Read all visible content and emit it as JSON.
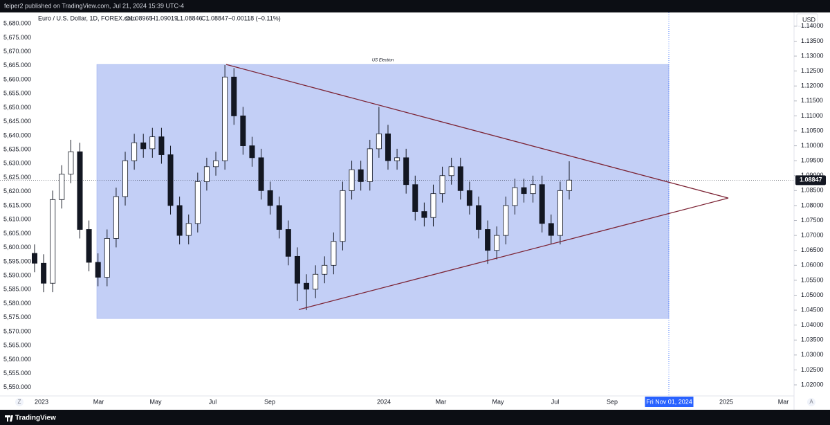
{
  "header": {
    "publisher": "feiper2 published on TradingView.com, Jul 21, 2024 15:39 UTC-4"
  },
  "footer": {
    "brand": "TradingView"
  },
  "chart_data": {
    "type": "candlestick",
    "legend": {
      "symbol": "Euro / U.S. Dollar, 1D, FOREX.com",
      "open": "O1.08965",
      "high": "H1.09019",
      "low": "L1.08846",
      "close": "C1.08847",
      "change": "−0.00118 (−0.11%)"
    },
    "currency": "USD",
    "up_color": "#ffffff",
    "down_color": "#131722",
    "wick_color": "#131722",
    "open": [
      1.064,
      1.0607,
      1.054,
      1.082,
      1.0905,
      1.098,
      1.072,
      1.061,
      1.056,
      1.069,
      1.083,
      1.095,
      1.101,
      1.099,
      1.103,
      1.097,
      1.08,
      1.07,
      1.074,
      1.088,
      1.093,
      1.095,
      1.123,
      1.11,
      1.1,
      1.096,
      1.085,
      1.08,
      1.072,
      1.063,
      1.054,
      1.052,
      1.057,
      1.06,
      1.068,
      1.085,
      1.092,
      1.088,
      1.099,
      1.104,
      1.095,
      1.096,
      1.087,
      1.078,
      1.076,
      1.084,
      1.09,
      1.093,
      1.085,
      1.08,
      1.072,
      1.065,
      1.07,
      1.08,
      1.086,
      1.084,
      1.087,
      1.074,
      1.07,
      1.085
    ],
    "high": [
      1.067,
      1.0637,
      1.085,
      1.0935,
      1.102,
      1.101,
      1.075,
      1.064,
      1.072,
      1.086,
      1.098,
      1.104,
      1.104,
      1.106,
      1.106,
      1.1,
      1.083,
      1.077,
      1.091,
      1.096,
      1.098,
      1.127,
      1.126,
      1.113,
      1.103,
      1.099,
      1.088,
      1.083,
      1.075,
      1.066,
      1.057,
      1.06,
      1.063,
      1.071,
      1.088,
      1.095,
      1.095,
      1.102,
      1.113,
      1.107,
      1.099,
      1.099,
      1.09,
      1.081,
      1.087,
      1.093,
      1.096,
      1.096,
      1.088,
      1.083,
      1.075,
      1.073,
      1.083,
      1.089,
      1.089,
      1.09,
      1.09,
      1.077,
      1.088,
      1.0948
    ],
    "low": [
      1.0577,
      1.051,
      1.051,
      1.079,
      1.0875,
      1.069,
      1.058,
      1.053,
      1.053,
      1.066,
      1.08,
      1.092,
      1.096,
      1.096,
      1.094,
      1.077,
      1.067,
      1.067,
      1.071,
      1.085,
      1.09,
      1.092,
      1.107,
      1.097,
      1.093,
      1.082,
      1.077,
      1.069,
      1.06,
      1.048,
      1.045,
      1.049,
      1.054,
      1.057,
      1.065,
      1.082,
      1.085,
      1.085,
      1.096,
      1.092,
      1.092,
      1.084,
      1.075,
      1.073,
      1.073,
      1.081,
      1.087,
      1.082,
      1.077,
      1.069,
      1.0605,
      1.062,
      1.067,
      1.077,
      1.081,
      1.081,
      1.071,
      1.067,
      1.067,
      1.082
    ],
    "close": [
      1.0607,
      1.054,
      1.082,
      1.0905,
      1.098,
      1.072,
      1.061,
      1.056,
      1.069,
      1.083,
      1.095,
      1.101,
      1.099,
      1.103,
      1.097,
      1.08,
      1.07,
      1.074,
      1.088,
      1.093,
      1.095,
      1.123,
      1.11,
      1.1,
      1.096,
      1.085,
      1.08,
      1.072,
      1.063,
      1.054,
      1.052,
      1.057,
      1.06,
      1.068,
      1.085,
      1.092,
      1.088,
      1.099,
      1.104,
      1.095,
      1.096,
      1.087,
      1.078,
      1.076,
      1.084,
      1.09,
      1.093,
      1.085,
      1.08,
      1.072,
      1.065,
      1.07,
      1.08,
      1.086,
      1.084,
      1.087,
      1.074,
      1.07,
      1.085,
      1.0885
    ],
    "last_price": 1.08847,
    "ylim": [
      1.0163,
      1.1446
    ],
    "yticks": [
      {
        "value": 1.02,
        "label": "1.02000"
      },
      {
        "value": 1.025,
        "label": "1.02500"
      },
      {
        "value": 1.03,
        "label": "1.03000"
      },
      {
        "value": 1.035,
        "label": "1.03500"
      },
      {
        "value": 1.04,
        "label": "1.04000"
      },
      {
        "value": 1.045,
        "label": "1.04500"
      },
      {
        "value": 1.05,
        "label": "1.05000"
      },
      {
        "value": 1.055,
        "label": "1.05500"
      },
      {
        "value": 1.06,
        "label": "1.06000"
      },
      {
        "value": 1.065,
        "label": "1.06500"
      },
      {
        "value": 1.07,
        "label": "1.07000"
      },
      {
        "value": 1.075,
        "label": "1.07500"
      },
      {
        "value": 1.08,
        "label": "1.08000"
      },
      {
        "value": 1.085,
        "label": "1.08500"
      },
      {
        "value": 1.09,
        "label": "1.09000"
      },
      {
        "value": 1.095,
        "label": "1.09500"
      },
      {
        "value": 1.1,
        "label": "1.10000"
      },
      {
        "value": 1.105,
        "label": "1.10500"
      },
      {
        "value": 1.11,
        "label": "1.11000"
      },
      {
        "value": 1.115,
        "label": "1.11500"
      },
      {
        "value": 1.12,
        "label": "1.12000"
      },
      {
        "value": 1.125,
        "label": "1.12500"
      },
      {
        "value": 1.13,
        "label": "1.13000"
      },
      {
        "value": 1.135,
        "label": "1.13500"
      },
      {
        "value": 1.14,
        "label": "1.14000"
      }
    ],
    "y2lim": [
      5547.0,
      5684.0
    ],
    "y2ticks": [
      {
        "value": 5550,
        "label": "5,550.000"
      },
      {
        "value": 5555,
        "label": "5,555.000"
      },
      {
        "value": 5560,
        "label": "5,560.000"
      },
      {
        "value": 5565,
        "label": "5,565.000"
      },
      {
        "value": 5570,
        "label": "5,570.000"
      },
      {
        "value": 5575,
        "label": "5,575.000"
      },
      {
        "value": 5580,
        "label": "5,580.000"
      },
      {
        "value": 5585,
        "label": "5,585.000"
      },
      {
        "value": 5590,
        "label": "5,590.000"
      },
      {
        "value": 5595,
        "label": "5,595.000"
      },
      {
        "value": 5600,
        "label": "5,600.000"
      },
      {
        "value": 5605,
        "label": "5,605.000"
      },
      {
        "value": 5610,
        "label": "5,610.000"
      },
      {
        "value": 5615,
        "label": "5,615.000"
      },
      {
        "value": 5620,
        "label": "5,620.000"
      },
      {
        "value": 5625,
        "label": "5,625.000"
      },
      {
        "value": 5630,
        "label": "5,630.000"
      },
      {
        "value": 5635,
        "label": "5,635.000"
      },
      {
        "value": 5640,
        "label": "5,640.000"
      },
      {
        "value": 5645,
        "label": "5,645.000"
      },
      {
        "value": 5650,
        "label": "5,650.000"
      },
      {
        "value": 5655,
        "label": "5,655.000"
      },
      {
        "value": 5660,
        "label": "5,660.000"
      },
      {
        "value": 5665,
        "label": "5,665.000"
      },
      {
        "value": 5670,
        "label": "5,670.000"
      },
      {
        "value": 5675,
        "label": "5,675.000"
      },
      {
        "value": 5680,
        "label": "5,680.000"
      }
    ],
    "time_labels": [
      "2023",
      "Mar",
      "May",
      "Jul",
      "Sep",
      null,
      "2024",
      "Mar",
      "May",
      "Jul",
      "Sep",
      "Fri Nov 01, 2024",
      "2025",
      "Mar"
    ],
    "highlighted_time_label": "Fri Nov 01, 2024",
    "box": {
      "label": "US Election",
      "top": 1.1272,
      "bottom": 1.0422,
      "color": "#c3cff6"
    },
    "triangle": {
      "apex": 1.0825,
      "upper_start": 1.1272,
      "lower_start": 1.0452,
      "color": "#7b2233"
    },
    "scale_buttons": {
      "left": "Z",
      "right": "A"
    }
  }
}
